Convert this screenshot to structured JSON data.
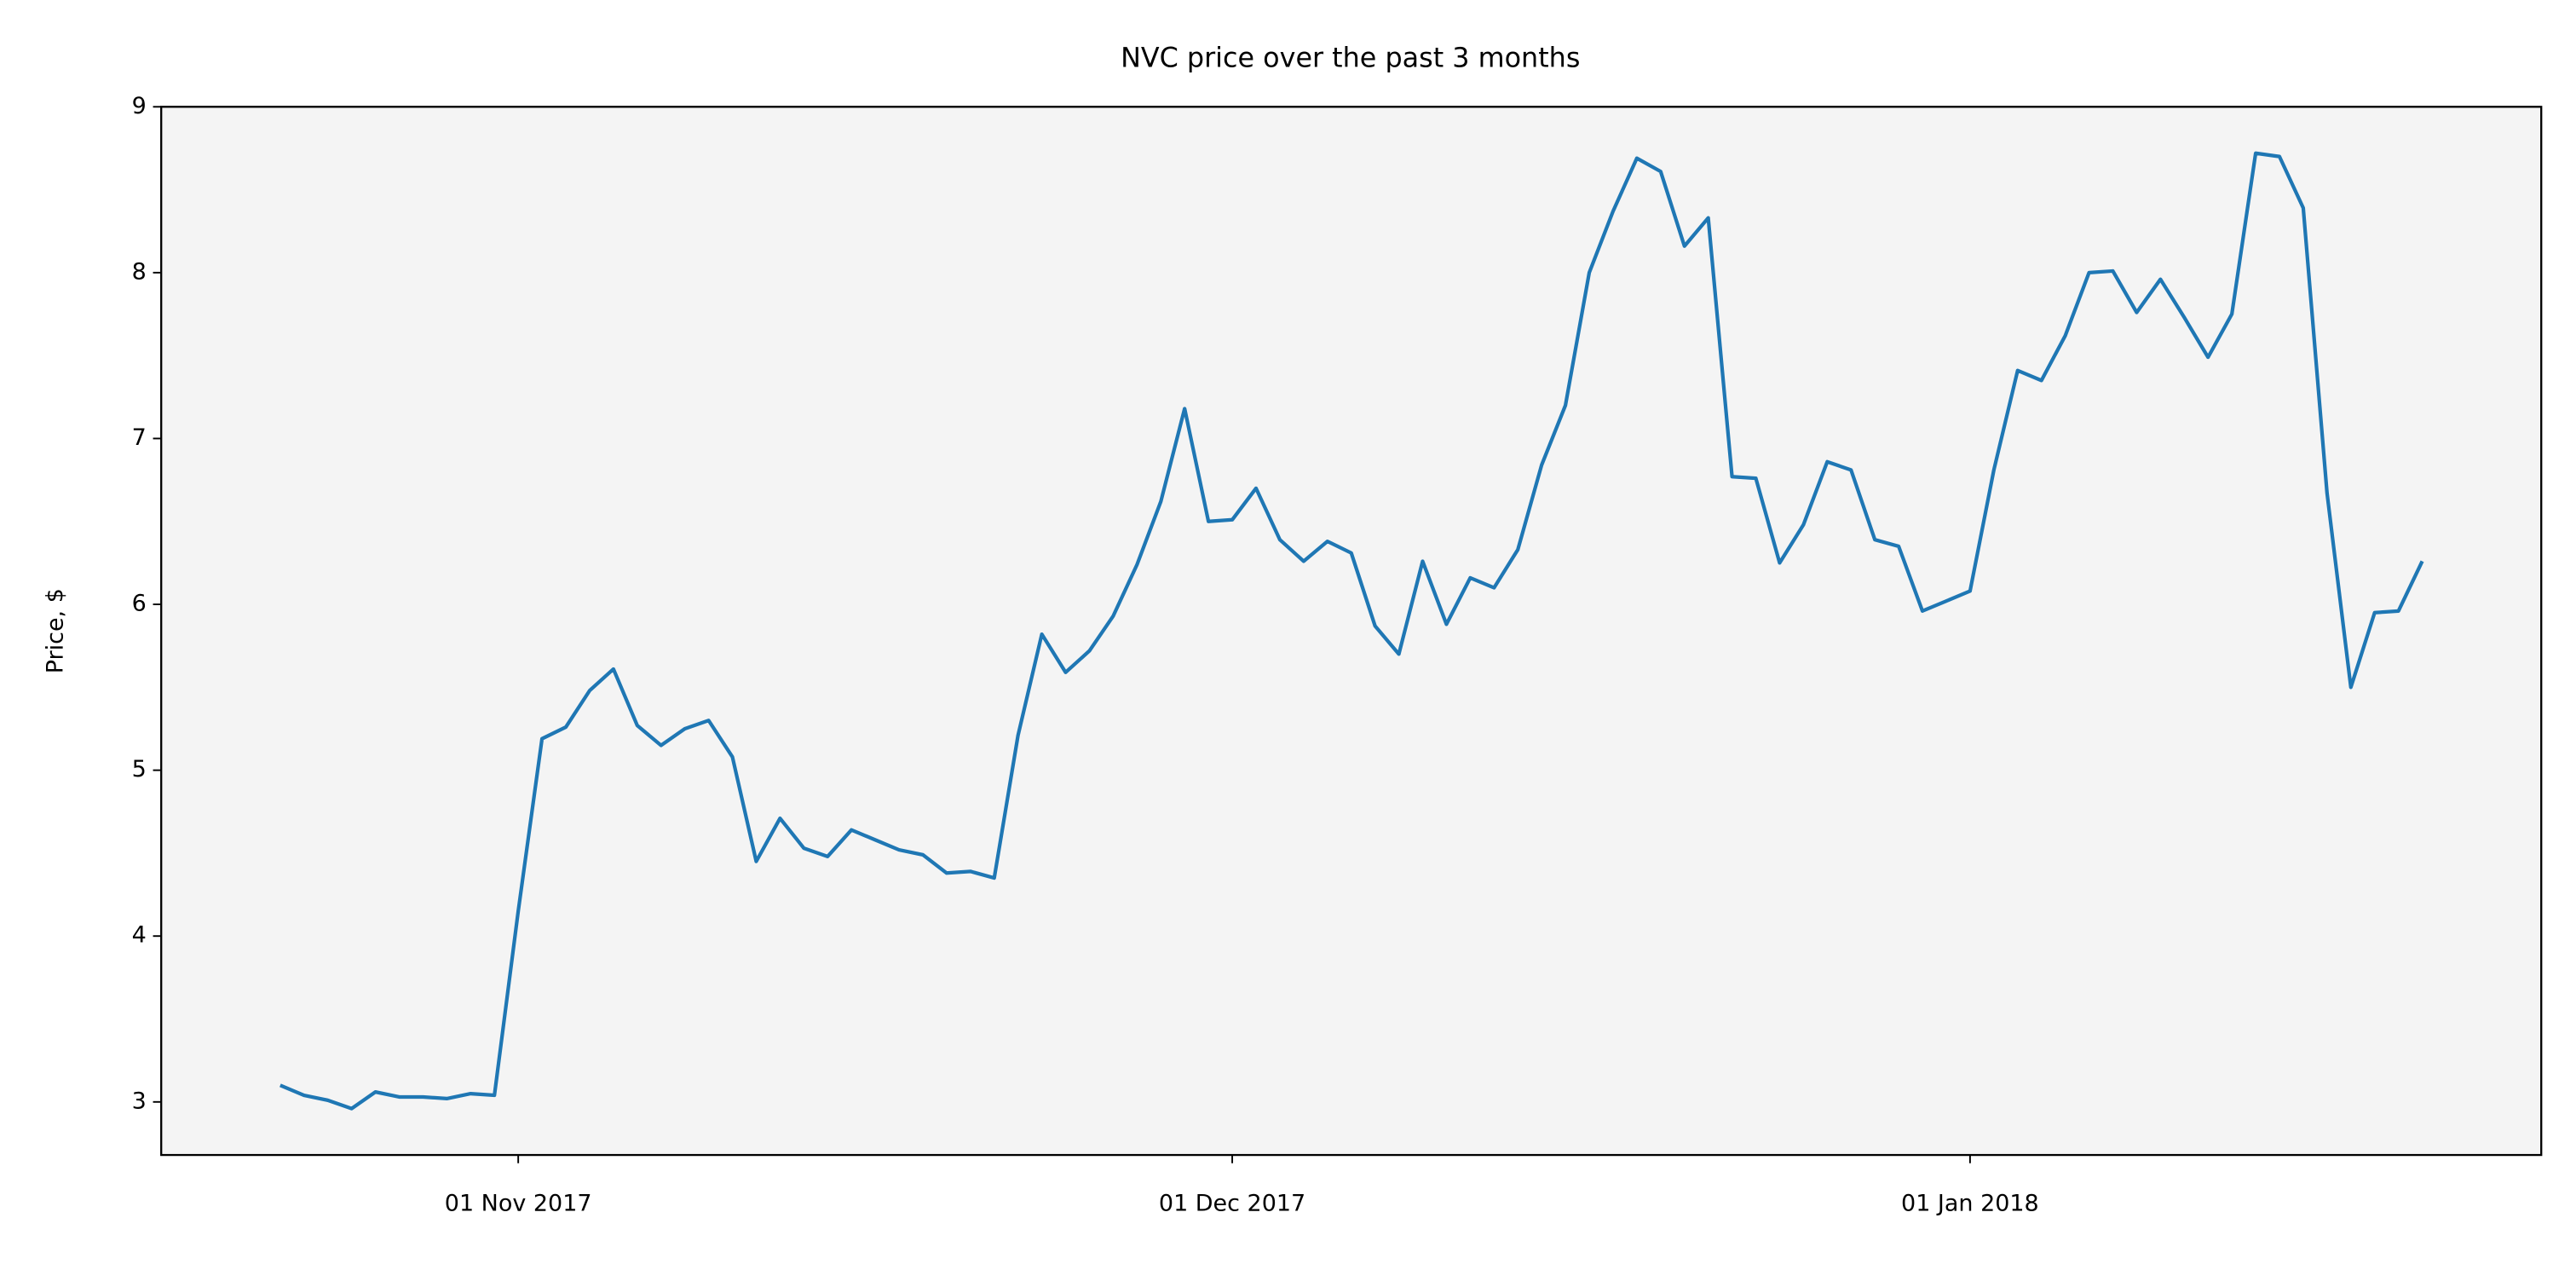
{
  "chart_data": {
    "type": "line",
    "title": "NVC price over the past 3 months",
    "y_label": "Price, $",
    "x": [
      "2017-10-22",
      "2017-10-23",
      "2017-10-24",
      "2017-10-25",
      "2017-10-26",
      "2017-10-27",
      "2017-10-28",
      "2017-10-29",
      "2017-10-30",
      "2017-10-31",
      "2017-11-01",
      "2017-11-02",
      "2017-11-03",
      "2017-11-04",
      "2017-11-05",
      "2017-11-06",
      "2017-11-07",
      "2017-11-08",
      "2017-11-09",
      "2017-11-10",
      "2017-11-11",
      "2017-11-12",
      "2017-11-13",
      "2017-11-14",
      "2017-11-15",
      "2017-11-16",
      "2017-11-17",
      "2017-11-18",
      "2017-11-19",
      "2017-11-20",
      "2017-11-21",
      "2017-11-22",
      "2017-11-23",
      "2017-11-24",
      "2017-11-25",
      "2017-11-26",
      "2017-11-27",
      "2017-11-28",
      "2017-11-29",
      "2017-11-30",
      "2017-12-01",
      "2017-12-02",
      "2017-12-03",
      "2017-12-04",
      "2017-12-05",
      "2017-12-06",
      "2017-12-07",
      "2017-12-08",
      "2017-12-09",
      "2017-12-10",
      "2017-12-11",
      "2017-12-12",
      "2017-12-13",
      "2017-12-14",
      "2017-12-15",
      "2017-12-16",
      "2017-12-17",
      "2017-12-18",
      "2017-12-19",
      "2017-12-20",
      "2017-12-21",
      "2017-12-22",
      "2017-12-23",
      "2017-12-24",
      "2017-12-25",
      "2017-12-26",
      "2017-12-27",
      "2017-12-28",
      "2017-12-29",
      "2017-12-30",
      "2017-12-31",
      "2018-01-01",
      "2018-01-02",
      "2018-01-03",
      "2018-01-04",
      "2018-01-05",
      "2018-01-06",
      "2018-01-07",
      "2018-01-08",
      "2018-01-09",
      "2018-01-10",
      "2018-01-11",
      "2018-01-12",
      "2018-01-13",
      "2018-01-14",
      "2018-01-15",
      "2018-01-16",
      "2018-01-17",
      "2018-01-18",
      "2018-01-19",
      "2018-01-20"
    ],
    "series": [
      {
        "name": "NVC",
        "color": "#1f77b4",
        "values": [
          3.1,
          3.04,
          3.01,
          2.96,
          3.06,
          3.03,
          3.03,
          3.02,
          3.05,
          3.04,
          4.15,
          5.19,
          5.26,
          5.48,
          5.61,
          5.27,
          5.15,
          5.25,
          5.3,
          5.08,
          4.45,
          4.71,
          4.53,
          4.48,
          4.64,
          4.58,
          4.52,
          4.49,
          4.38,
          4.39,
          4.35,
          5.21,
          5.82,
          5.59,
          5.72,
          5.93,
          6.24,
          6.62,
          7.18,
          6.5,
          6.51,
          6.7,
          6.39,
          6.26,
          6.38,
          6.31,
          5.87,
          5.7,
          6.26,
          5.88,
          6.16,
          6.1,
          6.33,
          6.84,
          7.2,
          8.0,
          8.37,
          8.69,
          8.61,
          8.16,
          8.33,
          6.77,
          6.76,
          6.25,
          6.48,
          6.86,
          6.81,
          6.39,
          6.35,
          5.96,
          6.02,
          6.08,
          6.81,
          7.41,
          7.35,
          7.62,
          8.0,
          8.01,
          7.76,
          7.96,
          7.73,
          7.49,
          7.75,
          8.72,
          8.7,
          8.39,
          6.67,
          5.5,
          5.95,
          5.96,
          6.26
        ]
      }
    ],
    "xlim": [
      "2017-10-17",
      "2018-01-25"
    ],
    "xticks": [
      {
        "value": "2017-11-01",
        "label": "01 Nov 2017"
      },
      {
        "value": "2017-12-01",
        "label": "01 Dec 2017"
      },
      {
        "value": "2018-01-01",
        "label": "01 Jan 2018"
      }
    ],
    "ylim": [
      2.68,
      9
    ],
    "yticks": [
      3,
      4,
      5,
      6,
      7,
      8,
      9
    ],
    "background": "#f4f4f4",
    "grid": false
  }
}
